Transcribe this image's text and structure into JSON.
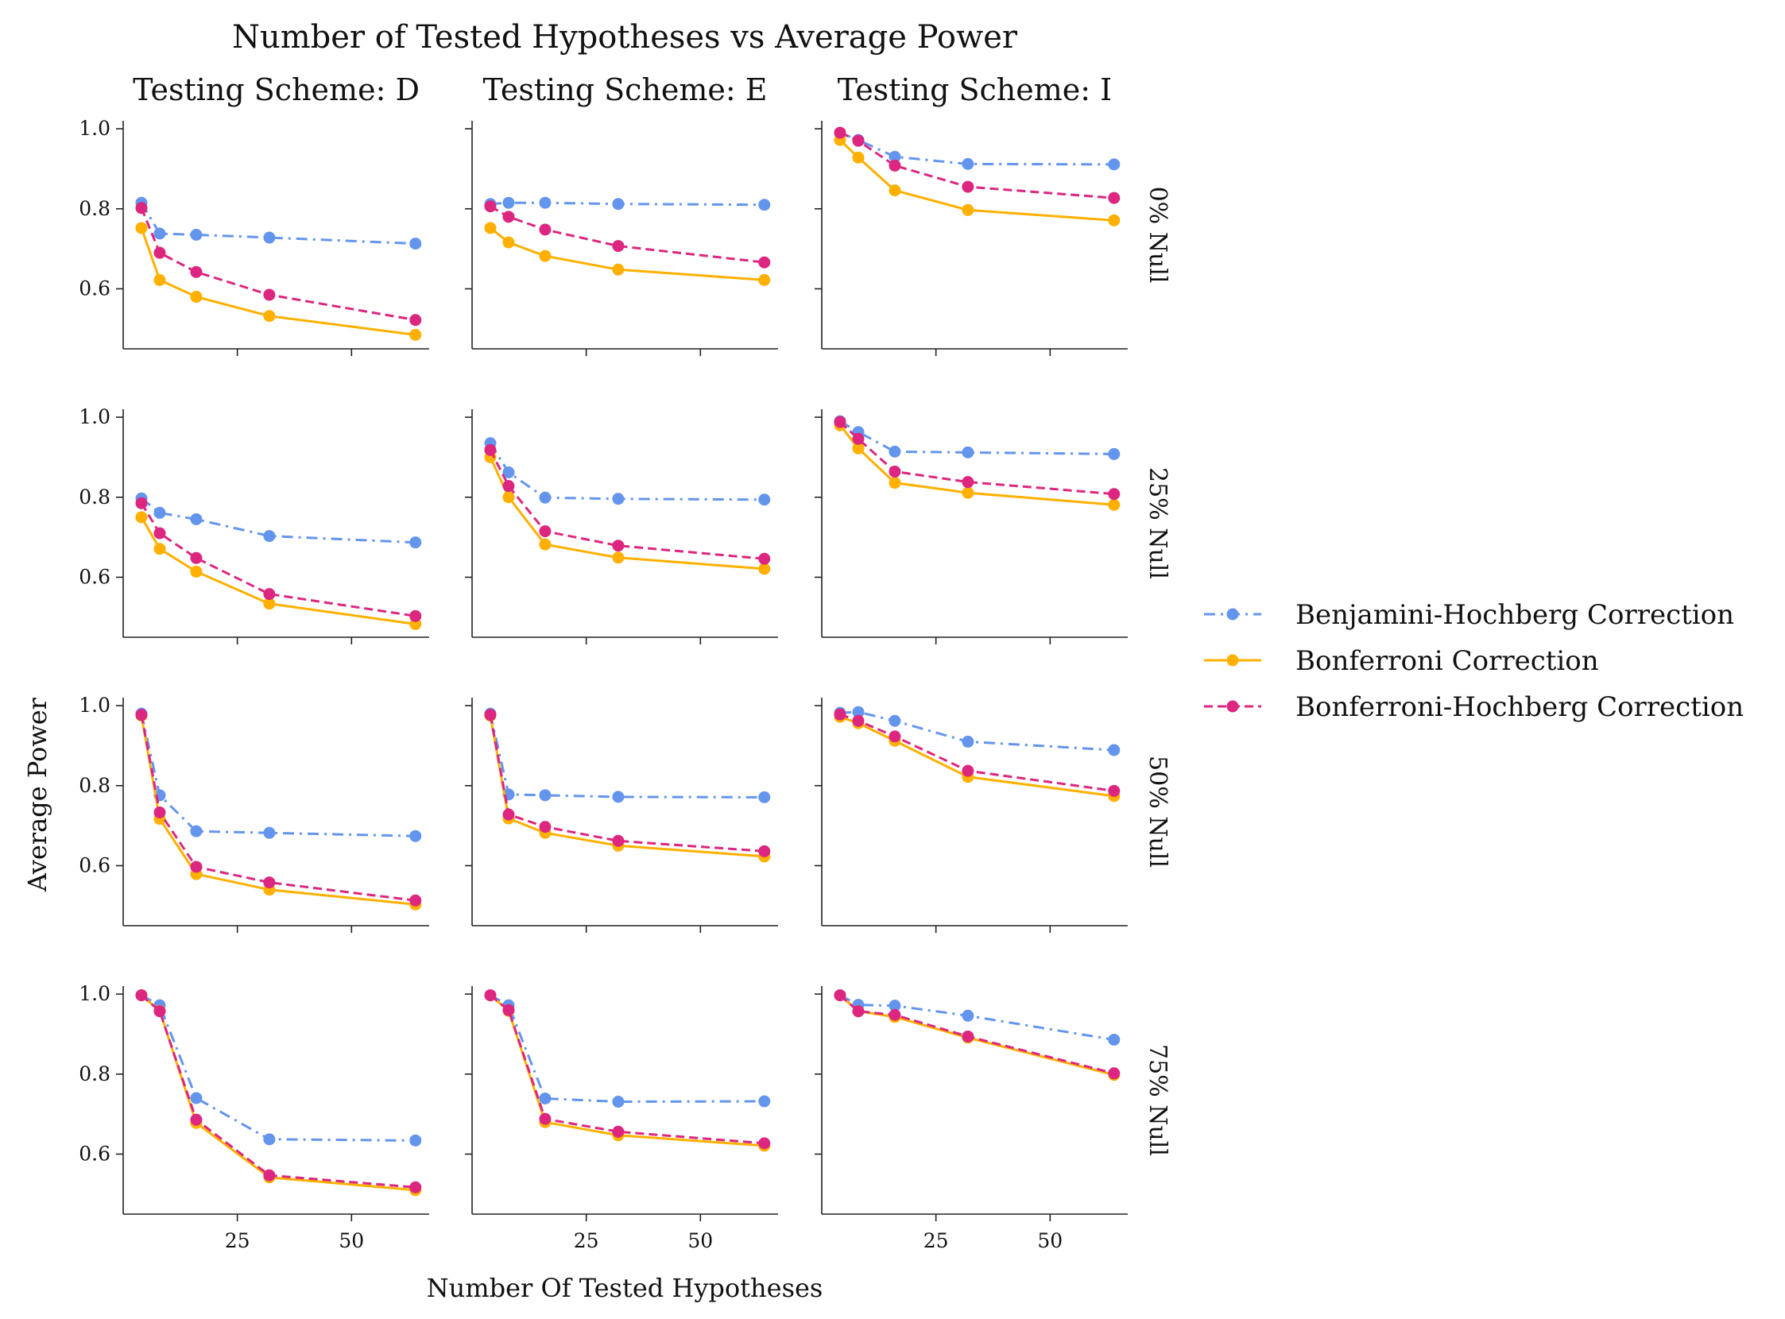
{
  "chart_data": {
    "type": "line",
    "title": "Number of Tested Hypotheses vs Average Power",
    "xlabel": "Number Of Tested Hypotheses",
    "ylabel": "Average Power",
    "x": [
      4,
      8,
      16,
      32,
      64
    ],
    "xlim": [
      0,
      67
    ],
    "ylim": [
      0.45,
      1.02
    ],
    "xticks": [
      25,
      50
    ],
    "yticks": [
      0.6,
      0.8,
      1.0
    ],
    "ytick_labels": [
      "0.6",
      "0.8",
      "1.0"
    ],
    "xtick_labels": [
      "25",
      "50"
    ],
    "grid": false,
    "legend_position": "right",
    "columns": [
      {
        "title": "Testing Scheme: D"
      },
      {
        "title": "Testing Scheme: E"
      },
      {
        "title": "Testing Scheme: I"
      }
    ],
    "rows": [
      {
        "label": "0% Null"
      },
      {
        "label": "25% Null"
      },
      {
        "label": "50% Null"
      },
      {
        "label": "75% Null"
      }
    ],
    "series_styles": [
      {
        "name": "Benjamini-Hochberg Correction",
        "color": "#6495ED",
        "dash": "14 7 3 7"
      },
      {
        "name": "Bonferroni Correction",
        "color": "#FFB000",
        "dash": ""
      },
      {
        "name": "Bonferroni-Hochberg Correction",
        "color": "#DC267F",
        "dash": "11 6"
      }
    ],
    "panels": [
      [
        {
          "series": [
            [
              0.815,
              0.738,
              0.735,
              0.728,
              0.713
            ],
            [
              0.752,
              0.622,
              0.58,
              0.532,
              0.485
            ],
            [
              0.802,
              0.69,
              0.642,
              0.585,
              0.522
            ]
          ]
        },
        {
          "series": [
            [
              0.812,
              0.815,
              0.815,
              0.812,
              0.81
            ],
            [
              0.752,
              0.716,
              0.682,
              0.648,
              0.622
            ],
            [
              0.806,
              0.78,
              0.748,
              0.707,
              0.666
            ]
          ]
        },
        {
          "series": [
            [
              0.99,
              0.972,
              0.93,
              0.912,
              0.911
            ],
            [
              0.972,
              0.928,
              0.846,
              0.797,
              0.771
            ],
            [
              0.99,
              0.97,
              0.908,
              0.855,
              0.827
            ]
          ]
        }
      ],
      [
        {
          "series": [
            [
              0.797,
              0.761,
              0.745,
              0.703,
              0.687
            ],
            [
              0.75,
              0.671,
              0.614,
              0.534,
              0.483
            ],
            [
              0.785,
              0.71,
              0.648,
              0.558,
              0.503
            ]
          ]
        },
        {
          "series": [
            [
              0.935,
              0.862,
              0.799,
              0.796,
              0.794
            ],
            [
              0.9,
              0.8,
              0.682,
              0.649,
              0.621
            ],
            [
              0.918,
              0.828,
              0.715,
              0.679,
              0.646
            ]
          ]
        },
        {
          "series": [
            [
              0.99,
              0.963,
              0.914,
              0.912,
              0.908
            ],
            [
              0.98,
              0.922,
              0.836,
              0.811,
              0.781
            ],
            [
              0.988,
              0.946,
              0.864,
              0.838,
              0.808
            ]
          ]
        }
      ],
      [
        {
          "series": [
            [
              0.98,
              0.776,
              0.686,
              0.682,
              0.674
            ],
            [
              0.975,
              0.717,
              0.579,
              0.54,
              0.503
            ],
            [
              0.977,
              0.733,
              0.597,
              0.558,
              0.513
            ]
          ]
        },
        {
          "series": [
            [
              0.98,
              0.778,
              0.776,
              0.772,
              0.771
            ],
            [
              0.975,
              0.718,
              0.682,
              0.65,
              0.623
            ],
            [
              0.977,
              0.728,
              0.697,
              0.662,
              0.636
            ]
          ]
        },
        {
          "series": [
            [
              0.982,
              0.984,
              0.962,
              0.91,
              0.889
            ],
            [
              0.972,
              0.956,
              0.912,
              0.822,
              0.774
            ],
            [
              0.978,
              0.962,
              0.923,
              0.837,
              0.787
            ]
          ]
        }
      ],
      [
        {
          "series": [
            [
              0.997,
              0.972,
              0.74,
              0.637,
              0.634
            ],
            [
              0.997,
              0.958,
              0.678,
              0.542,
              0.51
            ],
            [
              0.997,
              0.957,
              0.686,
              0.547,
              0.517
            ]
          ]
        },
        {
          "series": [
            [
              0.997,
              0.972,
              0.739,
              0.731,
              0.732
            ],
            [
              0.997,
              0.958,
              0.68,
              0.647,
              0.621
            ],
            [
              0.997,
              0.96,
              0.688,
              0.656,
              0.627
            ]
          ]
        },
        {
          "series": [
            [
              0.997,
              0.973,
              0.971,
              0.946,
              0.886
            ],
            [
              0.997,
              0.957,
              0.943,
              0.891,
              0.798
            ],
            [
              0.997,
              0.957,
              0.948,
              0.894,
              0.802
            ]
          ]
        }
      ]
    ]
  }
}
